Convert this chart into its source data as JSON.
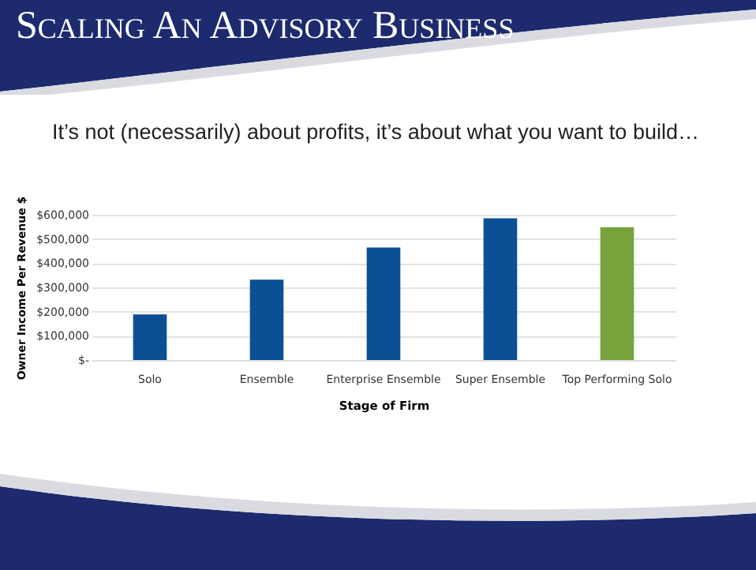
{
  "chart_data": {
    "type": "bar",
    "title": "Scaling An Advisory Business",
    "subtitle": "It’s not (necessarily) about profits, it’s about what you want to build…",
    "xlabel": "Stage of Firm",
    "ylabel": "Owner Income Per Revenue $",
    "categories": [
      "Solo",
      "Ensemble",
      "Enterprise Ensemble",
      "Super Ensemble",
      "Top Performing Solo"
    ],
    "values": [
      188000,
      332000,
      465000,
      585000,
      549000
    ],
    "colors": [
      "#0b4f94",
      "#0b4f94",
      "#0b4f94",
      "#0b4f94",
      "#78a23c"
    ],
    "ylim": [
      0,
      600000
    ],
    "yticks": [
      {
        "value": 0,
        "label": "$-"
      },
      {
        "value": 100000,
        "label": "$100,000"
      },
      {
        "value": 200000,
        "label": "$200,000"
      },
      {
        "value": 300000,
        "label": "$300,000"
      },
      {
        "value": 400000,
        "label": "$400,000"
      },
      {
        "value": 500000,
        "label": "$500,000"
      },
      {
        "value": 600000,
        "label": "$600,000"
      }
    ],
    "grid": "y"
  }
}
